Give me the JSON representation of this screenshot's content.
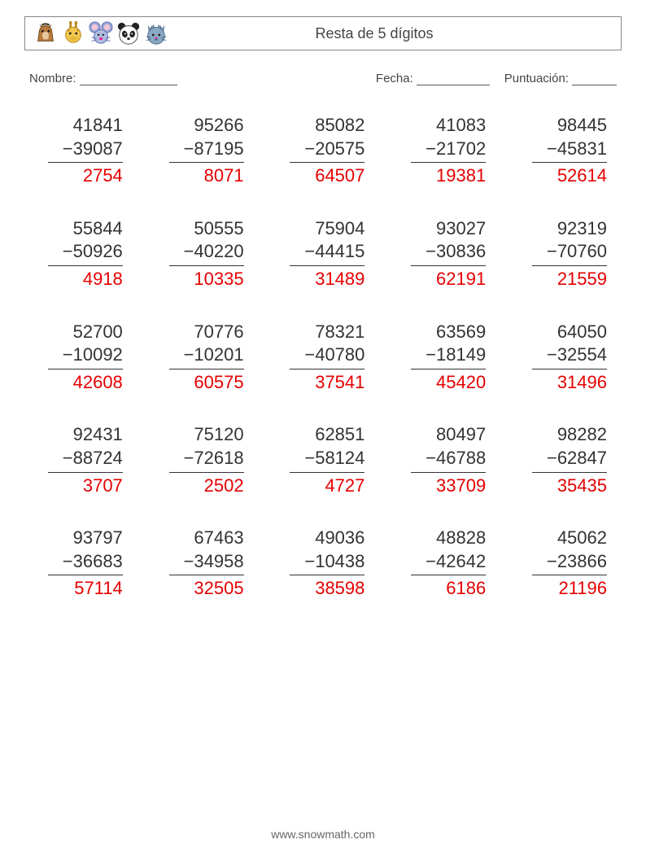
{
  "colors": {
    "text": "#333333",
    "answer": "#e50000",
    "border": "#888888",
    "line": "#555555",
    "bg": "#ffffff"
  },
  "header": {
    "title": "Resta de 5 dígitos",
    "icons": [
      "horse",
      "giraffe",
      "mouse",
      "panda",
      "cat"
    ]
  },
  "fields": {
    "name_label": "Nombre:",
    "date_label": "Fecha:",
    "score_label": "Puntuación:",
    "name_line_width": 120,
    "date_line_width": 90,
    "score_line_width": 55
  },
  "layout": {
    "rows": 5,
    "cols": 5,
    "font_size": 22,
    "rule_width": 92,
    "answer_color": "#e50000"
  },
  "problems": [
    {
      "a": "41841",
      "b": "−39087",
      "ans": "2754"
    },
    {
      "a": "95266",
      "b": "−87195",
      "ans": "8071"
    },
    {
      "a": "85082",
      "b": "−20575",
      "ans": "64507"
    },
    {
      "a": "41083",
      "b": "−21702",
      "ans": "19381"
    },
    {
      "a": "98445",
      "b": "−45831",
      "ans": "52614"
    },
    {
      "a": "55844",
      "b": "−50926",
      "ans": "4918"
    },
    {
      "a": "50555",
      "b": "−40220",
      "ans": "10335"
    },
    {
      "a": "75904",
      "b": "−44415",
      "ans": "31489"
    },
    {
      "a": "93027",
      "b": "−30836",
      "ans": "62191"
    },
    {
      "a": "92319",
      "b": "−70760",
      "ans": "21559"
    },
    {
      "a": "52700",
      "b": "−10092",
      "ans": "42608"
    },
    {
      "a": "70776",
      "b": "−10201",
      "ans": "60575"
    },
    {
      "a": "78321",
      "b": "−40780",
      "ans": "37541"
    },
    {
      "a": "63569",
      "b": "−18149",
      "ans": "45420"
    },
    {
      "a": "64050",
      "b": "−32554",
      "ans": "31496"
    },
    {
      "a": "92431",
      "b": "−88724",
      "ans": "3707"
    },
    {
      "a": "75120",
      "b": "−72618",
      "ans": "2502"
    },
    {
      "a": "62851",
      "b": "−58124",
      "ans": "4727"
    },
    {
      "a": "80497",
      "b": "−46788",
      "ans": "33709"
    },
    {
      "a": "98282",
      "b": "−62847",
      "ans": "35435"
    },
    {
      "a": "93797",
      "b": "−36683",
      "ans": "57114"
    },
    {
      "a": "67463",
      "b": "−34958",
      "ans": "32505"
    },
    {
      "a": "49036",
      "b": "−10438",
      "ans": "38598"
    },
    {
      "a": "48828",
      "b": "−42642",
      "ans": "6186"
    },
    {
      "a": "45062",
      "b": "−23866",
      "ans": "21196"
    }
  ],
  "footer": {
    "url": "www.snowmath.com"
  }
}
